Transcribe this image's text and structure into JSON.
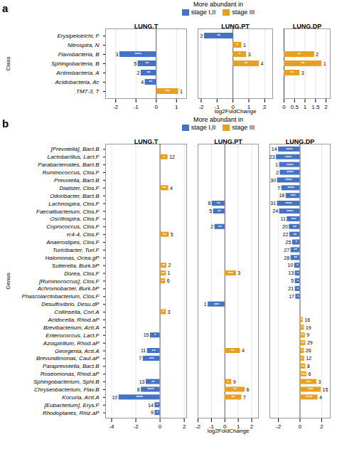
{
  "chart_data": [
    {
      "panel": "a",
      "type": "bar",
      "orientation": "horizontal",
      "grid": true,
      "legend_title": "More abundant in",
      "categories": [
        "Erysipelotrichi, F",
        "Nitrospira, N",
        "Flavobacteria, B",
        "Sphingobacteria, B",
        "Actinobacteria, A",
        "Acidobacteria, Ac",
        "TM7-3, T"
      ],
      "facets": [
        {
          "title": "LUNG.T",
          "ylabel": "Class",
          "xlim": [
            -2.5,
            1.5
          ],
          "xticks": [
            -2,
            -1,
            0,
            1
          ],
          "series": [
            {
              "name": "stage I,II",
              "color": "#4472C4",
              "values": [
                null,
                null,
                -1.8,
                -0.9,
                -0.75,
                -0.55,
                null
              ]
            },
            {
              "name": "stage III",
              "color": "#E8A020",
              "values": [
                null,
                null,
                null,
                null,
                null,
                null,
                1.1
              ]
            }
          ],
          "stars": [
            null,
            null,
            "****",
            "**",
            "**",
            "**",
            "***"
          ],
          "labels": [
            null,
            null,
            "3",
            "5",
            "2",
            "4",
            "1"
          ]
        },
        {
          "title": "LUNG.PT",
          "xlabel": "log2FoldChange",
          "xlim": [
            -2.2,
            2.5
          ],
          "xticks": [
            -2,
            -1,
            0,
            1,
            2
          ],
          "series": [
            {
              "name": "stage I,II",
              "color": "#4472C4",
              "values": [
                -1.8,
                null,
                null,
                null,
                null,
                null,
                null
              ]
            },
            {
              "name": "stage III",
              "color": "#E8A020",
              "values": [
                null,
                0.55,
                0.85,
                1.65,
                null,
                null,
                null
              ]
            }
          ],
          "stars": [
            "**",
            "*",
            "*",
            "**",
            null,
            null,
            null
          ],
          "labels": [
            "2",
            "1",
            "3",
            "4",
            null,
            null,
            null
          ]
        },
        {
          "title": "LUNG.DP",
          "xlim": [
            0,
            2.2
          ],
          "xticks": [
            0,
            0.5,
            1,
            1.5,
            2
          ],
          "series": [
            {
              "name": "stage I,II",
              "color": "#4472C4",
              "values": [
                null,
                null,
                null,
                null,
                null,
                null,
                null
              ]
            },
            {
              "name": "stage III",
              "color": "#E8A020",
              "values": [
                null,
                null,
                1.45,
                1.8,
                0.75,
                null,
                null
              ]
            }
          ],
          "stars": [
            null,
            null,
            "**",
            "**",
            "**",
            null,
            null
          ],
          "labels": [
            null,
            null,
            "2",
            "1",
            "3",
            null,
            null
          ]
        }
      ]
    },
    {
      "panel": "b",
      "type": "bar",
      "orientation": "horizontal",
      "grid": true,
      "legend_title": "More abundant in",
      "categories": [
        "[Prevotella], Bact.B",
        "Lactobacillus, Lact.F",
        "Parabacteroides, Bact.B",
        "Ruminococcus, Clos.F",
        "Prevotella, Bact.B",
        "Dialister, Clos.F",
        "Odoribacter, Bact.B",
        "Lachnospira, Clos.F",
        "Faecalibacterium, Clos.F",
        "Oscillospira, Clos.F",
        "Coprococcus, Clos.F",
        "rc4-4, Clos.F",
        "Anaerostipes, Clos.F",
        "Turicibacter, Turi.F",
        "Halomonas, Ocea.gP",
        "Sutterella, Burk.bP",
        "Dorea, Clos.F",
        "[Ruminococcus], Clos.F",
        "Achromobacter, Burk.bP",
        "Phascolarctobacterium, Clos.F",
        "Desulfovibrio, Desu.dP",
        "Collinsella, Cori.A",
        "Acidocella, Rhod.aP",
        "Brevibacterium, Acti.A",
        "Enterococcus, Lact.F",
        "Azospirillum, Rhod.aP",
        "Georgenia, Acti.A",
        "Brevundimonas, Caul.aP",
        "Paraprevotella, Bact.B",
        "Roseomonas, Rhod.aP",
        "Sphingobacterium, Sphi.B",
        "Chryseobacterium, Flav.B",
        "Kocuria, Acti.A",
        "[Eubacterium], Erys.F",
        "Rhodoplanes, Rhiz.aP"
      ],
      "facets": [
        {
          "title": "LUNG.T",
          "ylabel": "Genus",
          "xlim": [
            -4.5,
            2.2
          ],
          "xticks": [
            -4,
            -2,
            0,
            2
          ],
          "series": [
            {
              "name": "stage I,II",
              "color": "#4472C4",
              "values": [
                null,
                null,
                null,
                null,
                null,
                null,
                null,
                null,
                null,
                null,
                null,
                null,
                null,
                null,
                null,
                null,
                null,
                null,
                null,
                null,
                null,
                null,
                null,
                null,
                -0.8,
                null,
                -1.05,
                -1.4,
                null,
                null,
                -1.15,
                -1.55,
                -3.4,
                -0.42,
                -0.42
              ]
            },
            {
              "name": "stage III",
              "color": "#E8A020",
              "values": [
                null,
                0.65,
                null,
                null,
                null,
                0.7,
                null,
                null,
                null,
                null,
                null,
                0.75,
                null,
                null,
                null,
                0.55,
                0.5,
                0.45,
                null,
                null,
                null,
                0.5,
                null,
                null,
                null,
                null,
                null,
                null,
                null,
                null,
                null,
                null,
                null,
                null,
                null
              ]
            }
          ],
          "stars": [
            null,
            "*",
            null,
            null,
            null,
            "**",
            null,
            null,
            null,
            null,
            null,
            "**",
            null,
            null,
            null,
            "**",
            "**",
            "*",
            null,
            null,
            null,
            "*",
            null,
            null,
            "*",
            null,
            "**",
            "***",
            null,
            null,
            "**",
            "****",
            "****",
            "*",
            "*"
          ],
          "labels": [
            null,
            "12",
            null,
            null,
            null,
            "4",
            null,
            null,
            null,
            null,
            null,
            "5",
            null,
            null,
            null,
            "2",
            "1",
            "6",
            null,
            null,
            null,
            "3",
            null,
            null,
            "15",
            null,
            "11",
            "7",
            null,
            null,
            "13",
            "8",
            "10",
            "14",
            "9"
          ]
        },
        {
          "title": "LUNG.PT",
          "xlabel": "log2FoldChange",
          "xlim": [
            -2,
            2.5
          ],
          "xticks": [
            -2,
            -1,
            0,
            1,
            2
          ],
          "series": [
            {
              "name": "stage I,II",
              "color": "#4472C4",
              "values": [
                null,
                null,
                null,
                null,
                null,
                null,
                null,
                -0.95,
                -0.85,
                null,
                -0.75,
                null,
                null,
                null,
                null,
                null,
                null,
                null,
                null,
                null,
                -1.25,
                null,
                null,
                null,
                null,
                null,
                null,
                null,
                null,
                null,
                null,
                null,
                null,
                null,
                null
              ]
            },
            {
              "name": "stage III",
              "color": "#E8A020",
              "values": [
                null,
                null,
                null,
                null,
                null,
                null,
                null,
                null,
                null,
                null,
                null,
                null,
                null,
                null,
                null,
                null,
                0.85,
                null,
                null,
                null,
                null,
                null,
                null,
                null,
                null,
                null,
                1.15,
                null,
                null,
                null,
                0.5,
                1.5,
                1.25,
                null,
                null
              ]
            }
          ],
          "stars": [
            null,
            null,
            null,
            null,
            null,
            null,
            null,
            "**",
            "**",
            null,
            "**",
            null,
            null,
            null,
            null,
            null,
            "***",
            null,
            null,
            null,
            "***",
            null,
            null,
            null,
            null,
            null,
            "**",
            null,
            null,
            null,
            "*",
            "**",
            "**",
            null,
            null
          ],
          "labels": [
            null,
            null,
            null,
            null,
            null,
            null,
            null,
            "8",
            "5",
            null,
            "2",
            null,
            null,
            null,
            null,
            null,
            "3",
            null,
            null,
            null,
            "1",
            null,
            null,
            null,
            null,
            null,
            "4",
            null,
            null,
            null,
            "9",
            "6",
            "7",
            null,
            null
          ]
        },
        {
          "title": "LUNG.DP",
          "xlim": [
            -2.8,
            2.8
          ],
          "xticks": [
            -2,
            0,
            2
          ],
          "series": [
            {
              "name": "stage I,II",
              "color": "#4472C4",
              "values": [
                -2.0,
                -2.2,
                -1.9,
                -1.85,
                -2.1,
                -1.7,
                -1.3,
                -2.1,
                -1.9,
                -1.2,
                -1.0,
                -0.95,
                -0.7,
                -0.85,
                -0.85,
                -0.5,
                -0.45,
                -0.45,
                -0.45,
                -0.4,
                null,
                null,
                null,
                null,
                null,
                null,
                null,
                null,
                null,
                null,
                null,
                null,
                null,
                null,
                null
              ]
            },
            {
              "name": "stage III",
              "color": "#E8A020",
              "values": [
                null,
                null,
                null,
                null,
                null,
                null,
                null,
                null,
                null,
                null,
                null,
                null,
                null,
                null,
                null,
                null,
                null,
                null,
                null,
                null,
                null,
                null,
                0.28,
                0.38,
                0.48,
                0.52,
                0.38,
                0.42,
                0.52,
                0.62,
                1.55,
                1.95,
                1.65,
                null,
                null
              ]
            }
          ],
          "stars": [
            "****",
            "****",
            "****",
            "****",
            "****",
            "****",
            "***",
            "****",
            "****",
            "***",
            "**",
            "**",
            "*",
            "**",
            "**",
            "*",
            "*",
            "*",
            "*",
            "*",
            null,
            null,
            "*",
            "*",
            "**",
            "**",
            "*",
            "*",
            "**",
            "***",
            "***",
            "***",
            "****",
            null,
            null
          ],
          "labels": [
            "14",
            "23",
            "1",
            "2",
            "30",
            "7",
            "18",
            "31",
            "24",
            "11",
            "20",
            "22",
            "25",
            "27",
            "28",
            "10",
            "13",
            "5",
            "21",
            "17",
            null,
            null,
            "16",
            "19",
            "9",
            "29",
            "26",
            "12",
            "8",
            "6",
            "3",
            "15",
            "4",
            null,
            null
          ]
        }
      ]
    }
  ]
}
